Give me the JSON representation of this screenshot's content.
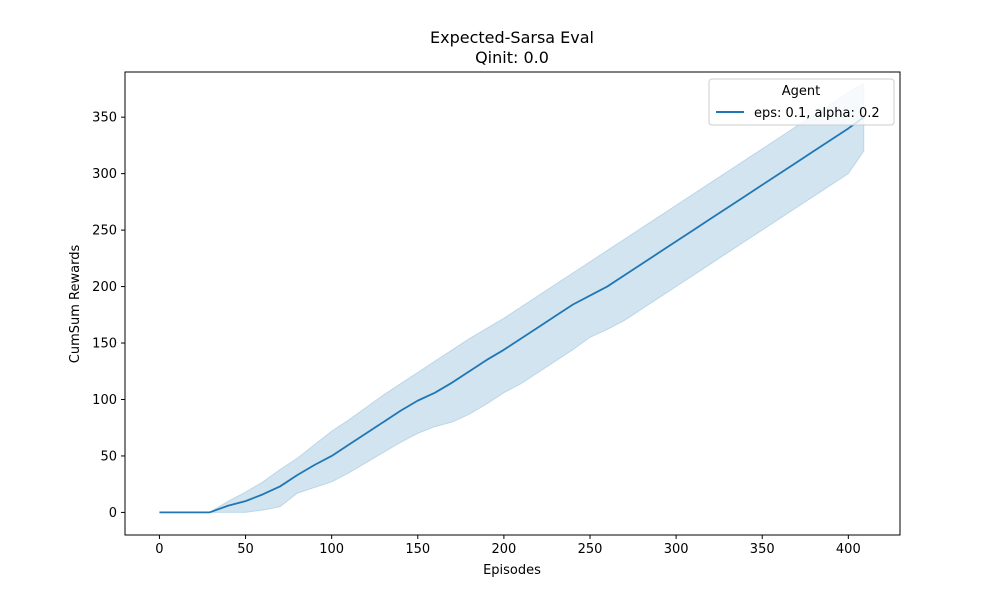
{
  "chart_data": {
    "type": "line",
    "title": "Expected-Sarsa Eval",
    "subtitle": "Qinit: 0.0",
    "xlabel": "Episodes",
    "ylabel": "CumSum Rewards",
    "xlim": [
      -20,
      430
    ],
    "ylim": [
      -20,
      390
    ],
    "xticks": [
      0,
      50,
      100,
      150,
      200,
      250,
      300,
      350,
      400
    ],
    "yticks": [
      0,
      50,
      100,
      150,
      200,
      250,
      300,
      350
    ],
    "grid": false,
    "legend": {
      "title": "Agent",
      "placement": "top-right"
    },
    "series": [
      {
        "name": "eps: 0.1, alpha: 0.2",
        "color": "#1f77b4",
        "band_color": "#1f77b4",
        "x": [
          0,
          10,
          20,
          29,
          40,
          50,
          60,
          70,
          80,
          90,
          100,
          110,
          120,
          130,
          140,
          150,
          160,
          170,
          180,
          190,
          200,
          210,
          220,
          230,
          240,
          250,
          260,
          270,
          280,
          290,
          300,
          310,
          320,
          330,
          340,
          350,
          360,
          370,
          380,
          390,
          400,
          409
        ],
        "y": [
          0,
          0,
          0,
          0,
          6,
          10,
          16,
          23,
          33,
          42,
          50,
          60,
          70,
          80,
          90,
          99,
          106,
          115,
          125,
          135,
          144,
          154,
          164,
          174,
          184,
          192,
          200,
          210,
          220,
          230,
          240,
          250,
          260,
          270,
          280,
          290,
          300,
          310,
          320,
          330,
          340,
          350
        ],
        "lower": [
          0,
          0,
          0,
          0,
          0,
          0,
          2,
          5,
          17,
          22,
          27,
          35,
          44,
          53,
          62,
          70,
          76,
          80,
          87,
          96,
          106,
          114,
          124,
          134,
          144,
          155,
          162,
          170,
          180,
          190,
          200,
          210,
          220,
          230,
          240,
          250,
          260,
          270,
          280,
          290,
          300,
          320
        ],
        "upper": [
          0,
          0,
          0,
          0,
          10,
          18,
          27,
          38,
          48,
          60,
          72,
          82,
          93,
          104,
          114,
          124,
          134,
          144,
          154,
          163,
          172,
          182,
          192,
          202,
          212,
          222,
          232,
          242,
          252,
          262,
          272,
          282,
          292,
          302,
          312,
          322,
          332,
          342,
          352,
          362,
          372,
          380
        ]
      }
    ]
  }
}
